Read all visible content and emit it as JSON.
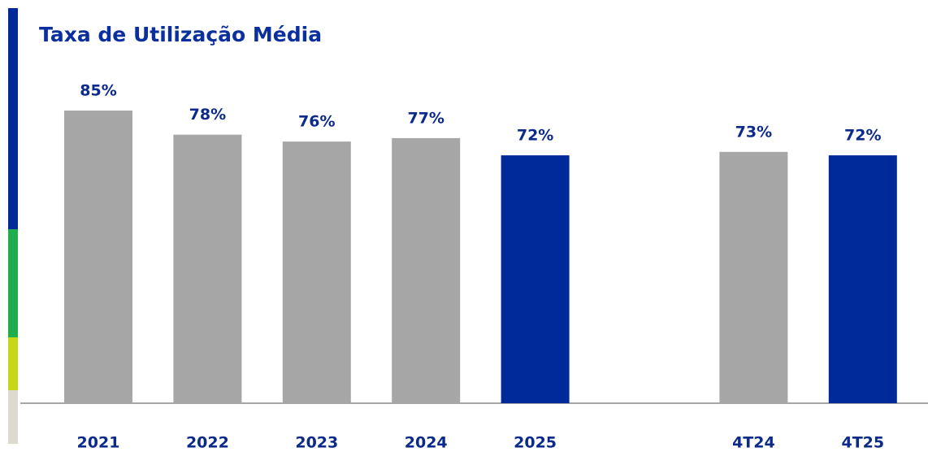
{
  "chart_data": {
    "type": "bar",
    "title": "Taxa de Utilização Média",
    "categories": [
      "2021",
      "2022",
      "2023",
      "2024",
      "2025",
      null,
      "4T24",
      "4T25"
    ],
    "values": [
      85,
      78,
      76,
      77,
      72,
      null,
      73,
      72
    ],
    "value_labels": [
      "85%",
      "78%",
      "76%",
      "77%",
      "72%",
      null,
      "73%",
      "72%"
    ],
    "colors": [
      "#a6a6a6",
      "#a6a6a6",
      "#a6a6a6",
      "#a6a6a6",
      "#002a9a",
      null,
      "#a6a6a6",
      "#002a9a"
    ]
  }
}
